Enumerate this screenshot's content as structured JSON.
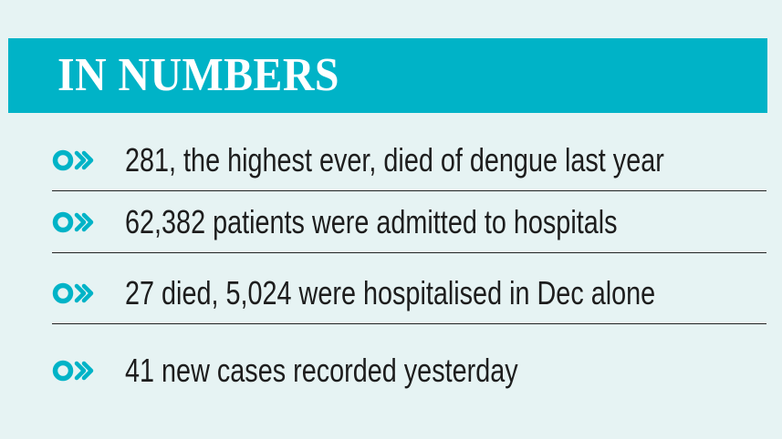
{
  "header": {
    "title": "IN NUMBERS"
  },
  "items": [
    {
      "text": "281, the highest ever, died of dengue last year",
      "icon": "chevron-bullet-icon"
    },
    {
      "text": "62,382 patients were admitted to hospitals",
      "icon": "chevron-bullet-icon"
    },
    {
      "text": "27 died, 5,024 were hospitalised in Dec alone",
      "icon": "chevron-bullet-icon"
    },
    {
      "text": "41 new cases recorded yesterday",
      "icon": "chevron-bullet-icon"
    }
  ],
  "colors": {
    "background": "#e6f3f3",
    "header_band": "#00b3c7",
    "header_text": "#ffffff",
    "bullet": "#00b3c7",
    "body_text": "#1d1d1d",
    "divider": "#222222"
  }
}
